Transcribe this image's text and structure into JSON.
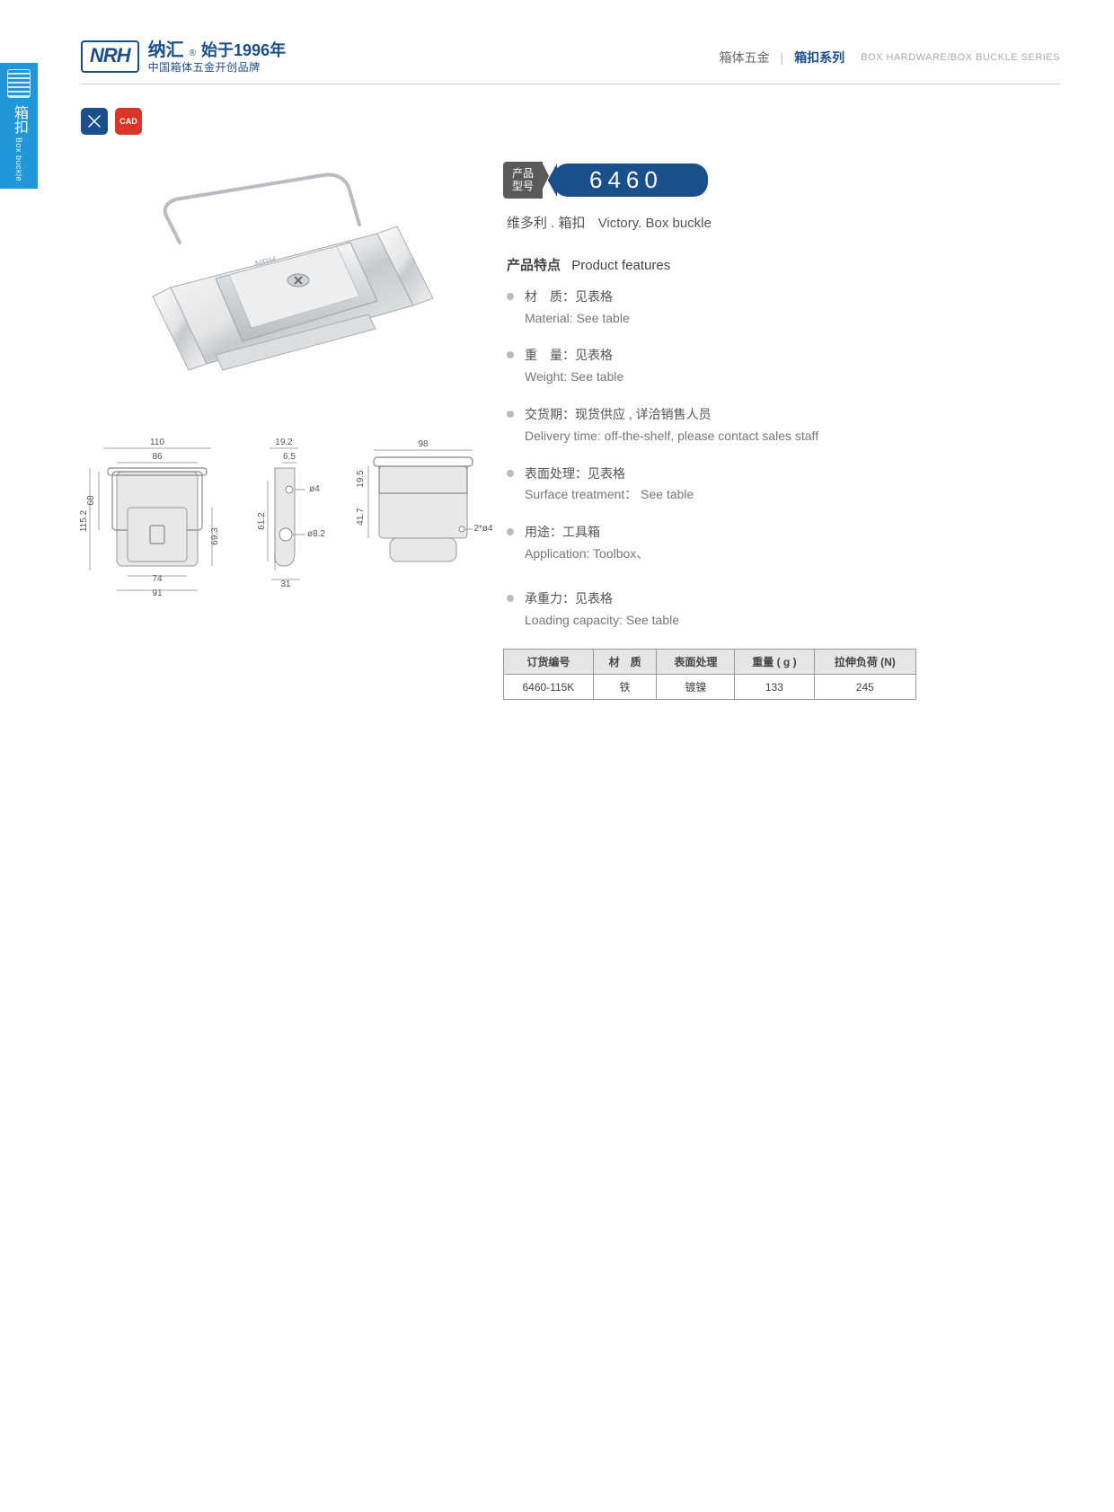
{
  "sideTab": {
    "cn": "箱扣",
    "en": "Box buckle"
  },
  "header": {
    "logo": {
      "badge": "NRH",
      "brandCn": "纳汇",
      "reg": "®",
      "since": "始于1996年",
      "tagline": "中国箱体五金开创品牌"
    },
    "right": {
      "cn1": "箱体五金",
      "cn2": "箱扣系列",
      "en": "BOX HARDWARE/BOX BUCKLE SERIES"
    }
  },
  "badges": {
    "blueIcon": "✕✕",
    "redIcon": "CAD"
  },
  "product": {
    "modelLabel": "产品\n型号",
    "modelValue": "6460",
    "subtitleCn": "维多利 . 箱扣",
    "subtitleEn": "Victory. Box buckle",
    "featuresHeadingCn": "产品特点",
    "featuresHeadingEn": "Product features"
  },
  "features": [
    {
      "cn": "材　质：见表格",
      "en": "Material: See table"
    },
    {
      "cn": "重　量：见表格",
      "en": "Weight: See table"
    },
    {
      "cn": "交货期：现货供应 , 详洽销售人员",
      "en": "Delivery time: off-the-shelf, please contact sales staff"
    },
    {
      "cn": "表面处理：见表格",
      "en": "Surface treatment： See table"
    },
    {
      "cn": "用途：工具箱",
      "en": "Application: Toolbox、"
    },
    {
      "cn": "承重力：见表格",
      "en": "Loading capacity: See table",
      "spacedAbove": true
    }
  ],
  "specTable": {
    "columns": [
      "订货编号",
      "材　质",
      "表面处理",
      "重量 ( g )",
      "拉伸负荷 (N)"
    ],
    "rows": [
      [
        "6460-115K",
        "铁",
        "镀镍",
        "133",
        "245"
      ]
    ]
  },
  "diagrams": {
    "front": {
      "dims": {
        "w_top1": "110",
        "w_top2": "86",
        "h_left_top": "68",
        "h_left_total": "115.2",
        "h_right": "69.3",
        "w_bot1": "74",
        "w_bot2": "91"
      }
    },
    "side": {
      "dims": {
        "w_top1": "19.2",
        "w_top2": "6.5",
        "d1": "ø4",
        "d2": "ø8.2",
        "h": "61.2",
        "w_bot": "31"
      }
    },
    "plan": {
      "dims": {
        "w_top": "98",
        "h_left1": "19.5",
        "h_left2": "41.7",
        "hole": "2*ø4"
      }
    }
  },
  "colors": {
    "brandBlue": "#1a4f8b",
    "sideBlue": "#2196d9",
    "badgeRed": "#d9362a",
    "partFill": "#e8e8e8",
    "partStroke": "#999",
    "tableHeaderBg": "#e6e6e6"
  }
}
